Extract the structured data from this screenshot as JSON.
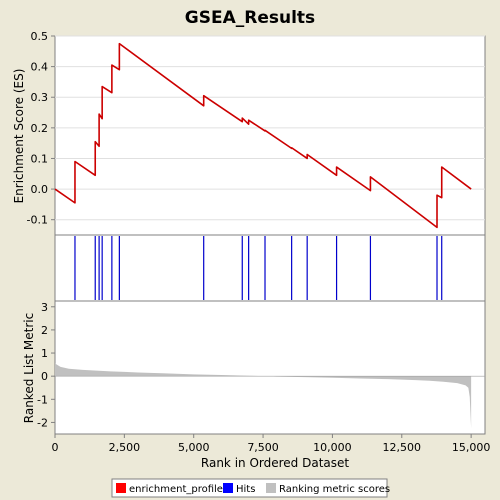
{
  "chart_data": {
    "type": "line",
    "title": "GSEA_Results",
    "xlabel": "Rank in Ordered Dataset",
    "xlim": [
      0,
      15500
    ],
    "x_ticks": [
      "0",
      "2,500",
      "5,000",
      "7,500",
      "10,000",
      "12,500",
      "15,000"
    ],
    "x_tick_values": [
      0,
      2500,
      5000,
      7500,
      10000,
      12500,
      15000
    ],
    "enrichment_panel": {
      "ylabel": "Enrichment Score (ES)",
      "ylim": [
        -0.15,
        0.5
      ],
      "y_ticks": [
        "0.5",
        "0.4",
        "0.3",
        "0.2",
        "0.1",
        "0.0",
        "-0.1"
      ],
      "y_tick_values": [
        0.5,
        0.4,
        0.3,
        0.2,
        0.1,
        0.0,
        -0.1
      ],
      "grid": true,
      "series": [
        {
          "name": "enrichment_profile",
          "color": "#cc0000",
          "x": [
            0,
            720,
            720,
            1450,
            1450,
            1590,
            1590,
            1700,
            1700,
            2050,
            2050,
            2320,
            2320,
            5360,
            5360,
            6750,
            6750,
            6980,
            6980,
            7570,
            7570,
            8530,
            8530,
            9090,
            9090,
            10150,
            10150,
            11370,
            11370,
            13770,
            13770,
            13940,
            13940,
            15000
          ],
          "y": [
            0.0,
            -0.045,
            0.09,
            0.045,
            0.155,
            0.14,
            0.245,
            0.23,
            0.335,
            0.315,
            0.405,
            0.39,
            0.475,
            0.272,
            0.305,
            0.22,
            0.232,
            0.212,
            0.225,
            0.19,
            0.192,
            0.133,
            0.135,
            0.1,
            0.113,
            0.045,
            0.072,
            -0.005,
            0.04,
            -0.125,
            -0.02,
            -0.028,
            0.072,
            0.0
          ]
        }
      ]
    },
    "hits_panel": {
      "name": "Hits",
      "color": "#0000cc",
      "x": [
        720,
        1450,
        1590,
        1700,
        2050,
        2320,
        5360,
        6750,
        6980,
        7570,
        8530,
        9090,
        10150,
        11370,
        13770,
        13940
      ]
    },
    "ranked_panel": {
      "ylabel": "Ranked List Metric",
      "ylim": [
        -2.5,
        3.25
      ],
      "y_ticks": [
        "3",
        "2",
        "1",
        "0",
        "-1",
        "-2"
      ],
      "y_tick_values": [
        3,
        2,
        1,
        0,
        -1,
        -2
      ],
      "series": [
        {
          "name": "Ranking metric scores",
          "color": "#c0c0c0",
          "x": [
            0,
            200,
            500,
            1000,
            2000,
            3000,
            4000,
            5000,
            6000,
            7000,
            7500,
            8000,
            9000,
            10000,
            11000,
            12000,
            13000,
            13500,
            14000,
            14500,
            14800,
            14900,
            14950,
            15000
          ],
          "y": [
            0.55,
            0.4,
            0.32,
            0.27,
            0.21,
            0.16,
            0.12,
            0.08,
            0.05,
            0.02,
            0.0,
            -0.02,
            -0.04,
            -0.07,
            -0.1,
            -0.13,
            -0.17,
            -0.2,
            -0.24,
            -0.3,
            -0.4,
            -0.5,
            -0.9,
            -2.25
          ]
        }
      ]
    },
    "legend": {
      "position": "bottom",
      "entries": [
        {
          "label": "enrichment_profile",
          "color": "#ff0000"
        },
        {
          "label": "Hits",
          "color": "#0000ff"
        },
        {
          "label": "Ranking metric scores",
          "color": "#c0c0c0"
        }
      ]
    }
  }
}
